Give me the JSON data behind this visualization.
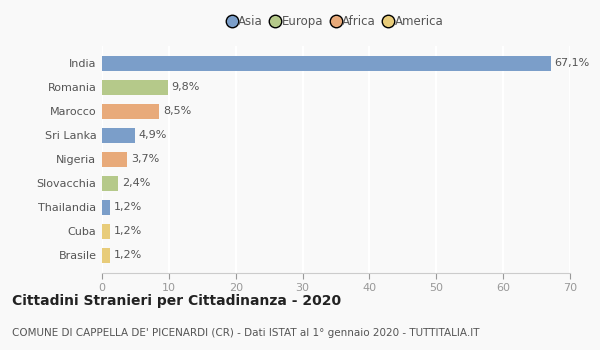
{
  "categories": [
    "India",
    "Romania",
    "Marocco",
    "Sri Lanka",
    "Nigeria",
    "Slovacchia",
    "Thailandia",
    "Cuba",
    "Brasile"
  ],
  "values": [
    67.1,
    9.8,
    8.5,
    4.9,
    3.7,
    2.4,
    1.2,
    1.2,
    1.2
  ],
  "labels": [
    "67,1%",
    "9,8%",
    "8,5%",
    "4,9%",
    "3,7%",
    "2,4%",
    "1,2%",
    "1,2%",
    "1,2%"
  ],
  "colors": [
    "#7b9ec9",
    "#b5c98a",
    "#e8aa7a",
    "#7b9ec9",
    "#e8aa7a",
    "#b5c98a",
    "#7b9ec9",
    "#e8cc7a",
    "#e8cc7a"
  ],
  "legend_labels": [
    "Asia",
    "Europa",
    "Africa",
    "America"
  ],
  "legend_colors": [
    "#7b9ec9",
    "#b5c98a",
    "#e8aa7a",
    "#e8cc7a"
  ],
  "title": "Cittadini Stranieri per Cittadinanza - 2020",
  "subtitle": "COMUNE DI CAPPELLA DE' PICENARDI (CR) - Dati ISTAT al 1° gennaio 2020 - TUTTITALIA.IT",
  "xlim": [
    0,
    70
  ],
  "xticks": [
    0,
    10,
    20,
    30,
    40,
    50,
    60,
    70
  ],
  "bg_color": "#f9f9f9",
  "grid_color": "#ffffff",
  "label_color": "#555555",
  "tick_color": "#999999",
  "title_fontsize": 10,
  "subtitle_fontsize": 7.5,
  "bar_label_fontsize": 8,
  "ytick_fontsize": 8,
  "xtick_fontsize": 8,
  "legend_fontsize": 8.5
}
